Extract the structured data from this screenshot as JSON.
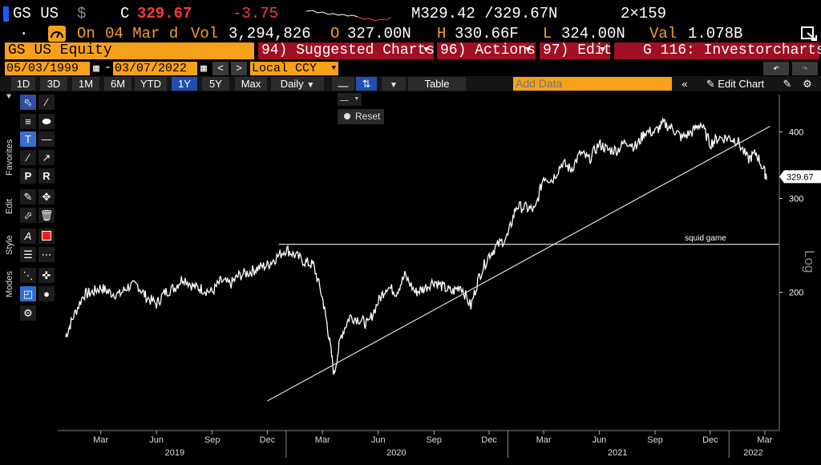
{
  "header": {
    "ticker": "GS US",
    "currency_symbol": "$",
    "close_label": "C",
    "close_value": "329.67",
    "change": "-3.75",
    "range_text": "M329.42 /329.67N",
    "size_text": "2×159"
  },
  "quote": {
    "dot": ".",
    "on_label": "On",
    "date": "04 Mar d",
    "vol_label": "Vol",
    "vol_value": "3,294,826",
    "open_label": "O",
    "open_value": "327.00N",
    "high_label": "H",
    "high_value": "330.66F",
    "low_label": "L",
    "low_value": "324.00N",
    "val_label": "Val",
    "val_value": "1.078B"
  },
  "menu": {
    "security": "GS US Equity",
    "suggested": "94) Suggested Charts",
    "actions": "96) Actions",
    "edit": "97) Edit",
    "investor": "G 116: Investorcharts"
  },
  "range": {
    "start": "05/03/1999",
    "end": "03/07/2022",
    "dash": "-",
    "currency": "Local CCY"
  },
  "toolbar": {
    "periods": [
      "1D",
      "3D",
      "1M",
      "6M",
      "YTD",
      "1Y",
      "5Y",
      "Max"
    ],
    "active_period": "1Y",
    "frequency": "Daily",
    "table_label": "Table",
    "add_data_placeholder": "Add Data",
    "edit_chart": "Edit Chart"
  },
  "side_tabs": [
    "Favorites",
    "Edit",
    "Style",
    "Modes"
  ],
  "chart_controls": {
    "reset_label": "Reset"
  },
  "chart_data": {
    "type": "line",
    "security": "GS US Equity",
    "scale": "log",
    "scale_label": "Log",
    "last_price_label": "329.67",
    "y_ticks": [
      200,
      300,
      400
    ],
    "x_month_labels": [
      "Mar",
      "Jun",
      "Sep",
      "Dec",
      "Mar",
      "Jun",
      "Sep",
      "Dec",
      "Mar",
      "Jun",
      "Sep",
      "Dec",
      "Mar"
    ],
    "x_year_labels": [
      "2019",
      "2020",
      "2021",
      "2022"
    ],
    "annotation_label": "squid game",
    "annotation_level": 246,
    "trendline": {
      "start": [
        "2019-12-01",
        125
      ],
      "end": [
        "2022-03-10",
        410
      ]
    },
    "series": [
      {
        "dates": [
          "2019-01-02",
          "2019-01-15",
          "2019-02-01",
          "2019-02-15",
          "2019-03-01",
          "2019-03-15",
          "2019-04-01",
          "2019-04-15",
          "2019-05-01",
          "2019-05-15",
          "2019-06-01",
          "2019-06-15",
          "2019-07-01",
          "2019-07-15",
          "2019-08-01",
          "2019-08-15",
          "2019-09-01",
          "2019-09-15",
          "2019-10-01",
          "2019-10-15",
          "2019-11-01",
          "2019-11-15",
          "2019-12-01",
          "2019-12-15",
          "2020-01-01",
          "2020-01-15",
          "2020-02-01",
          "2020-02-15",
          "2020-03-01",
          "2020-03-10",
          "2020-03-20",
          "2020-04-01",
          "2020-04-15",
          "2020-05-01",
          "2020-05-15",
          "2020-06-01",
          "2020-06-15",
          "2020-07-01",
          "2020-07-15",
          "2020-08-01",
          "2020-08-15",
          "2020-09-01",
          "2020-09-15",
          "2020-10-01",
          "2020-10-15",
          "2020-11-01",
          "2020-11-15",
          "2020-12-01",
          "2020-12-15",
          "2021-01-01",
          "2021-01-15",
          "2021-02-01",
          "2021-02-15",
          "2021-03-01",
          "2021-03-15",
          "2021-04-01",
          "2021-04-15",
          "2021-05-01",
          "2021-05-15",
          "2021-06-01",
          "2021-06-15",
          "2021-07-01",
          "2021-07-15",
          "2021-08-01",
          "2021-08-15",
          "2021-09-01",
          "2021-09-15",
          "2021-10-01",
          "2021-10-15",
          "2021-11-01",
          "2021-11-15",
          "2021-12-01",
          "2021-12-15",
          "2022-01-01",
          "2022-01-15",
          "2022-02-01",
          "2022-02-15",
          "2022-03-01",
          "2022-03-04"
        ],
        "values": [
          165,
          180,
          198,
          200,
          204,
          200,
          198,
          205,
          206,
          196,
          190,
          200,
          204,
          213,
          205,
          203,
          200,
          210,
          207,
          215,
          218,
          222,
          225,
          232,
          241,
          235,
          228,
          225,
          195,
          170,
          140,
          166,
          180,
          178,
          174,
          192,
          205,
          200,
          215,
          200,
          203,
          210,
          205,
          200,
          206,
          188,
          215,
          235,
          245,
          255,
          290,
          288,
          285,
          330,
          325,
          350,
          340,
          365,
          355,
          380,
          370,
          370,
          385,
          375,
          400,
          400,
          415,
          405,
          390,
          400,
          415,
          380,
          390,
          390,
          385,
          355,
          365,
          335,
          329.67
        ]
      }
    ]
  }
}
